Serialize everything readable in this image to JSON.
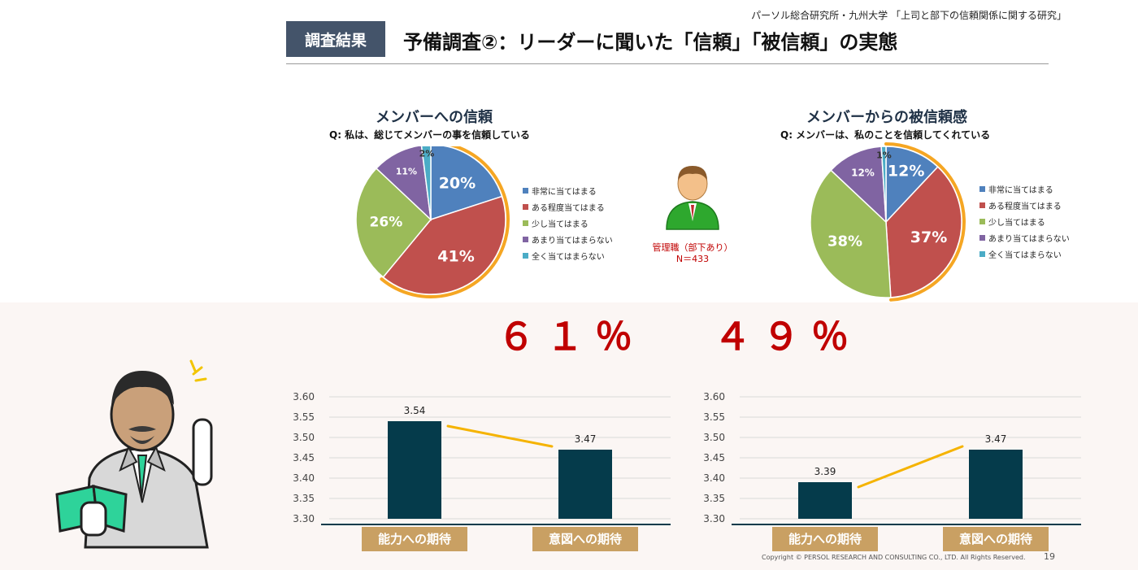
{
  "header": {
    "source": "パーソル総合研究所・九州大学 「上司と部下の信頼関係に関する研究」",
    "tag": "調査結果",
    "title": "予備調査②：リーダーに聞いた「信頼」「被信頼」の実態"
  },
  "respondent": {
    "label": "管理職（部下あり）",
    "n": "N＝433"
  },
  "headline": {
    "left": "６１％",
    "right": "４９％"
  },
  "footer": {
    "copyright": "Copyright © PERSOL RESEARCH AND CONSULTING CO., LTD. All Rights Reserved.",
    "page": "19"
  },
  "colors": {
    "blue": "#4f81bd",
    "red": "#c0504d",
    "green": "#9bbb59",
    "purple": "#8064a2",
    "teal": "#4bacc6",
    "highlight_ring": "#f5a623",
    "bar": "#053b4b",
    "connector": "#f5b300",
    "axis_label_bg": "#c9a063",
    "headline": "#c00000"
  },
  "chart_data": [
    {
      "type": "pie",
      "title": "メンバーへの信頼",
      "subtitle": "Q:  私は、総じてメンバーの事を信頼している",
      "categories": [
        "非常に当てはまる",
        "ある程度当てはまる",
        "少し当てはまる",
        "あまり当てはまらない",
        "全く当てはまらない"
      ],
      "values": [
        20,
        41,
        26,
        11,
        2
      ],
      "labels": [
        "20%",
        "41%",
        "26%",
        "11%",
        "2%"
      ],
      "highlighted": [
        "非常に当てはまる",
        "ある程度当てはまる"
      ],
      "legend": "right"
    },
    {
      "type": "pie",
      "title": "メンバーからの被信頼感",
      "subtitle": "Q:  メンバーは、私のことを信頼してくれている",
      "categories": [
        "非常に当てはまる",
        "ある程度当てはまる",
        "少し当てはまる",
        "あまり当てはまらない",
        "全く当てはまらない"
      ],
      "values": [
        12,
        37,
        38,
        12,
        1
      ],
      "labels": [
        "12%",
        "37%",
        "38%",
        "12%",
        "1%"
      ],
      "highlighted": [
        "非常に当てはまる",
        "ある程度当てはまる"
      ],
      "legend": "right"
    },
    {
      "type": "bar",
      "categories": [
        "能力への期待",
        "意図への期待"
      ],
      "values": [
        3.54,
        3.47
      ],
      "value_labels": [
        "3.54",
        "3.47"
      ],
      "ylim": [
        3.3,
        3.6
      ],
      "yticks": [
        "3.60",
        "3.55",
        "3.50",
        "3.45",
        "3.40",
        "3.35",
        "3.30"
      ],
      "grid": true
    },
    {
      "type": "bar",
      "categories": [
        "能力への期待",
        "意図への期待"
      ],
      "values": [
        3.39,
        3.47
      ],
      "value_labels": [
        "3.39",
        "3.47"
      ],
      "ylim": [
        3.3,
        3.6
      ],
      "yticks": [
        "3.60",
        "3.55",
        "3.50",
        "3.45",
        "3.40",
        "3.35",
        "3.30"
      ],
      "grid": true
    }
  ]
}
